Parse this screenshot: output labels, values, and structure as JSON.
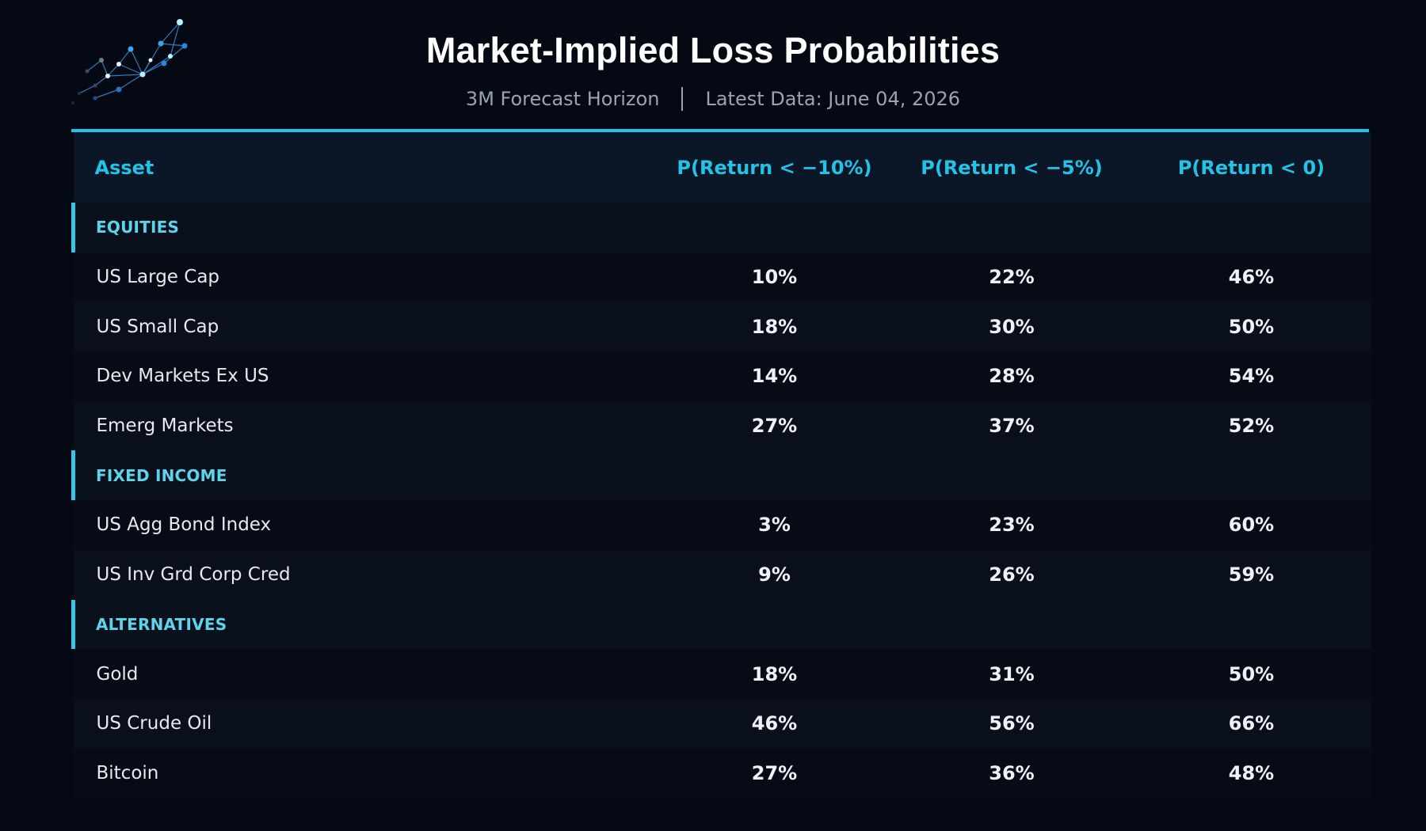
{
  "title": "Market-Implied Loss Probabilities",
  "subtitle": {
    "horizon": "3M Forecast Horizon",
    "latest": "Latest Data: June 04, 2026"
  },
  "columns": {
    "asset": "Asset",
    "p10": "P(Return < −10%)",
    "p5": "P(Return < −5%)",
    "p0": "P(Return < 0)"
  },
  "colors": {
    "accent": "#22c3e6",
    "background": "#050914"
  },
  "chart_data": {
    "type": "table",
    "title": "Market-Implied Loss Probabilities",
    "columns": [
      "Asset",
      "P(Return < −10%)",
      "P(Return < −5%)",
      "P(Return < 0)"
    ],
    "groups": [
      {
        "name": "EQUITIES",
        "rows": [
          {
            "asset": "US Large Cap",
            "p10": "10%",
            "p5": "22%",
            "p0": "46%"
          },
          {
            "asset": "US Small Cap",
            "p10": "18%",
            "p5": "30%",
            "p0": "50%"
          },
          {
            "asset": "Dev Markets Ex US",
            "p10": "14%",
            "p5": "28%",
            "p0": "54%"
          },
          {
            "asset": "Emerg Markets",
            "p10": "27%",
            "p5": "37%",
            "p0": "52%"
          }
        ]
      },
      {
        "name": "FIXED INCOME",
        "rows": [
          {
            "asset": "US Agg Bond Index",
            "p10": "3%",
            "p5": "23%",
            "p0": "60%"
          },
          {
            "asset": "US Inv Grd Corp Cred",
            "p10": "9%",
            "p5": "26%",
            "p0": "59%"
          }
        ]
      },
      {
        "name": "ALTERNATIVES",
        "rows": [
          {
            "asset": "Gold",
            "p10": "18%",
            "p5": "31%",
            "p0": "50%"
          },
          {
            "asset": "US Crude Oil",
            "p10": "46%",
            "p5": "56%",
            "p0": "66%"
          },
          {
            "asset": "Bitcoin",
            "p10": "27%",
            "p5": "36%",
            "p0": "48%"
          }
        ]
      }
    ]
  }
}
